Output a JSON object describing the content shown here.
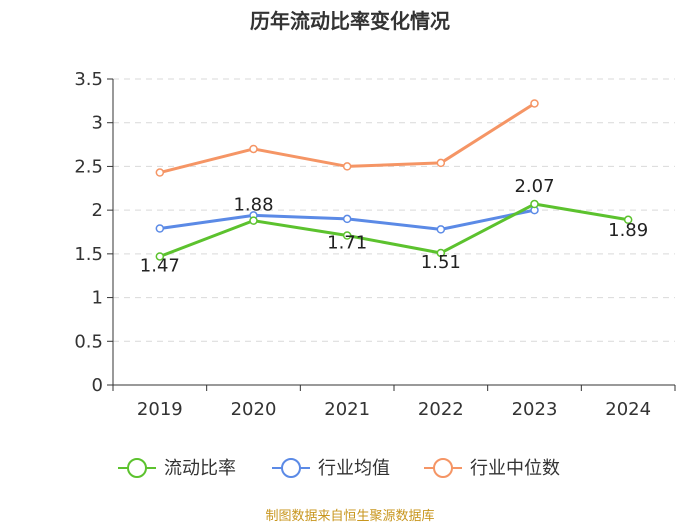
{
  "chart_data": {
    "type": "line",
    "title": "历年流动比率变化情况",
    "categories": [
      "2019",
      "2020",
      "2021",
      "2022",
      "2023",
      "2024"
    ],
    "ylim": [
      0,
      3.5
    ],
    "yticks": [
      "0",
      "0.5",
      "1",
      "1.5",
      "2",
      "2.5",
      "3",
      "3.5"
    ],
    "ytick_values": [
      0,
      0.5,
      1,
      1.5,
      2,
      2.5,
      3,
      3.5
    ],
    "grid": true,
    "legend_position": "bottom",
    "series": [
      {
        "name": "流动比率",
        "color": "#5cc22e",
        "values": [
          1.47,
          1.88,
          1.71,
          1.51,
          2.07,
          1.89
        ],
        "labels": [
          "1.47",
          "1.88",
          "1.71",
          "1.51",
          "2.07",
          "1.89"
        ]
      },
      {
        "name": "行业均值",
        "color": "#5b8ae6",
        "values": [
          1.79,
          1.94,
          1.9,
          1.78,
          2.0,
          null
        ]
      },
      {
        "name": "行业中位数",
        "color": "#f59565",
        "values": [
          2.43,
          2.7,
          2.5,
          2.54,
          3.22,
          null
        ]
      }
    ],
    "source": "制图数据来自恒生聚源数据库"
  }
}
